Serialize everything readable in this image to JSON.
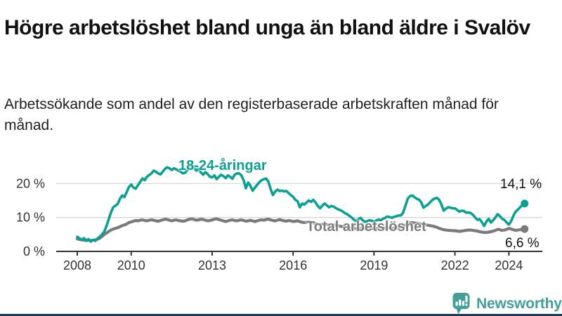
{
  "header": {
    "title": "Högre arbetslöshet bland unga än bland äldre i Svalöv",
    "subtitle": "Arbetssökande som andel av den registerbaserade arbetskraften månad för månad."
  },
  "chart_data": {
    "type": "line",
    "title": "Högre arbetslöshet bland unga än bland äldre i Svalöv",
    "subtitle": "Arbetssökande som andel av den registerbaserade arbetskraften månad för månad.",
    "x_unit": "month",
    "x_start": 2008.0,
    "x_end": 2024.583,
    "x_ticks": [
      2008,
      2010,
      2013,
      2016,
      2019,
      2022,
      2024
    ],
    "y_ticks": [
      0,
      10,
      20
    ],
    "y_tick_suffix": " %",
    "ylim": [
      0,
      27
    ],
    "grid": true,
    "legend_position": "inline-labels",
    "series": [
      {
        "id": "young",
        "name": "18-24-åringar",
        "color": "#0aa092",
        "end_label": "14,1 %",
        "end_value": 14.1,
        "values": [
          4.3,
          3.8,
          3.5,
          3.9,
          3.2,
          3.6,
          2.9,
          3.4,
          3.1,
          3.8,
          4.3,
          5.0,
          5.8,
          7.5,
          9.5,
          11.5,
          13.0,
          13.5,
          14.0,
          15.5,
          16.5,
          16.0,
          17.5,
          19.0,
          19.7,
          18.8,
          18.5,
          19.5,
          20.5,
          21.5,
          21.0,
          22.0,
          22.5,
          23.0,
          23.8,
          23.5,
          23.0,
          22.7,
          23.5,
          24.3,
          24.8,
          24.5,
          24.0,
          24.5,
          24.2,
          23.8,
          23.5,
          23.0,
          23.2,
          24.0,
          24.8,
          25.4,
          24.6,
          23.8,
          24.4,
          23.3,
          22.6,
          23.4,
          22.8,
          22.0,
          21.8,
          22.4,
          21.3,
          22.0,
          22.6,
          22.2,
          21.6,
          22.4,
          22.0,
          21.4,
          22.6,
          23.0,
          23.0,
          22.4,
          21.0,
          18.6,
          20.3,
          19.4,
          17.9,
          18.8,
          19.6,
          20.4,
          21.0,
          21.3,
          21.5,
          20.6,
          18.4,
          16.6,
          17.6,
          18.2,
          17.8,
          17.9,
          17.7,
          17.8,
          17.2,
          16.6,
          16.1,
          15.2,
          14.8,
          13.0,
          14.1,
          13.8,
          14.4,
          15.0,
          14.6,
          15.2,
          14.4,
          13.4,
          12.7,
          13.5,
          14.1,
          13.6,
          13.0,
          13.4,
          13.2,
          12.8,
          12.4,
          12.2,
          11.8,
          11.3,
          11.0,
          10.5,
          10.0,
          9.4,
          8.9,
          9.4,
          9.9,
          9.2,
          8.7,
          8.9,
          9.2,
          9.0,
          8.8,
          9.1,
          9.4,
          9.2,
          9.6,
          9.9,
          10.3,
          10.1,
          9.9,
          10.2,
          10.4,
          10.6,
          10.6,
          11.5,
          13.5,
          15.5,
          16.3,
          16.5,
          16.0,
          15.5,
          15.3,
          14.5,
          12.9,
          13.4,
          13.8,
          14.5,
          15.2,
          15.6,
          15.8,
          15.2,
          13.8,
          12.0,
          12.6,
          13.0,
          12.9,
          12.7,
          12.7,
          12.2,
          11.7,
          12.0,
          11.9,
          11.4,
          11.5,
          11.3,
          10.8,
          10.0,
          9.3,
          9.5,
          8.6,
          7.5,
          8.8,
          9.6,
          8.5,
          9.2,
          10.0,
          11.0,
          10.4,
          9.6,
          9.3,
          8.5,
          7.9,
          8.9,
          10.5,
          11.7,
          12.3,
          13.0,
          13.7,
          14.1
        ]
      },
      {
        "id": "total",
        "name": "Total arbetslöshet",
        "color": "#7a7a7a",
        "end_label": "6,6 %",
        "end_value": 6.6,
        "values": [
          3.7,
          3.5,
          3.4,
          3.3,
          3.2,
          3.3,
          3.2,
          3.3,
          3.4,
          3.6,
          3.9,
          4.4,
          5.0,
          5.4,
          5.9,
          6.3,
          6.6,
          6.8,
          7.0,
          7.3,
          7.6,
          7.8,
          8.1,
          8.5,
          8.7,
          8.9,
          9.1,
          9.0,
          9.2,
          9.3,
          9.1,
          9.0,
          9.2,
          9.3,
          9.2,
          9.0,
          8.9,
          9.1,
          9.3,
          9.5,
          9.4,
          9.2,
          9.0,
          9.2,
          9.3,
          9.1,
          9.0,
          8.9,
          9.0,
          9.3,
          9.5,
          9.6,
          9.4,
          9.2,
          9.3,
          9.5,
          9.4,
          9.2,
          9.0,
          9.1,
          9.3,
          9.5,
          9.6,
          9.4,
          9.2,
          9.0,
          8.8,
          9.0,
          9.2,
          9.3,
          9.1,
          9.0,
          9.2,
          9.3,
          9.1,
          8.9,
          9.0,
          9.2,
          9.0,
          8.8,
          9.0,
          9.2,
          9.3,
          9.2,
          9.4,
          9.5,
          9.3,
          9.1,
          9.0,
          9.2,
          9.4,
          9.2,
          9.0,
          8.9,
          9.1,
          9.0,
          8.8,
          8.9,
          9.0,
          8.8,
          8.6,
          8.5,
          8.6,
          8.8,
          8.6,
          8.4,
          8.2,
          8.0,
          7.9,
          8.0,
          8.1,
          7.9,
          7.7,
          7.6,
          7.7,
          7.8,
          7.6,
          7.4,
          7.3,
          7.2,
          7.1,
          7.0,
          6.9,
          6.8,
          6.7,
          6.8,
          6.9,
          6.8,
          6.7,
          6.6,
          6.6,
          6.7,
          6.7,
          6.8,
          6.8,
          6.7,
          6.8,
          6.9,
          7.0,
          6.9,
          6.8,
          6.9,
          7.0,
          7.1,
          7.2,
          7.3,
          7.8,
          8.2,
          8.4,
          8.5,
          8.4,
          8.3,
          8.2,
          8.0,
          7.9,
          7.8,
          7.7,
          7.6,
          7.5,
          7.3,
          7.1,
          6.8,
          6.6,
          6.4,
          6.3,
          6.2,
          6.2,
          6.1,
          6.1,
          6.0,
          5.9,
          6.0,
          6.1,
          6.2,
          6.3,
          6.3,
          6.2,
          6.1,
          6.0,
          5.8,
          5.7,
          5.6,
          5.6,
          5.7,
          5.8,
          6.0,
          6.2,
          6.5,
          6.4,
          6.2,
          6.3,
          6.5,
          6.8,
          6.6,
          6.4,
          6.2,
          6.3,
          6.4,
          6.5,
          6.6
        ]
      }
    ]
  },
  "logo": {
    "name": "Newsworthy",
    "text_color": "#43a096",
    "icon_color": "#43a096"
  },
  "colors": {
    "grid": "#d8d8d8",
    "axis": "#333333",
    "bottom_bar": "#1b3a5c"
  }
}
